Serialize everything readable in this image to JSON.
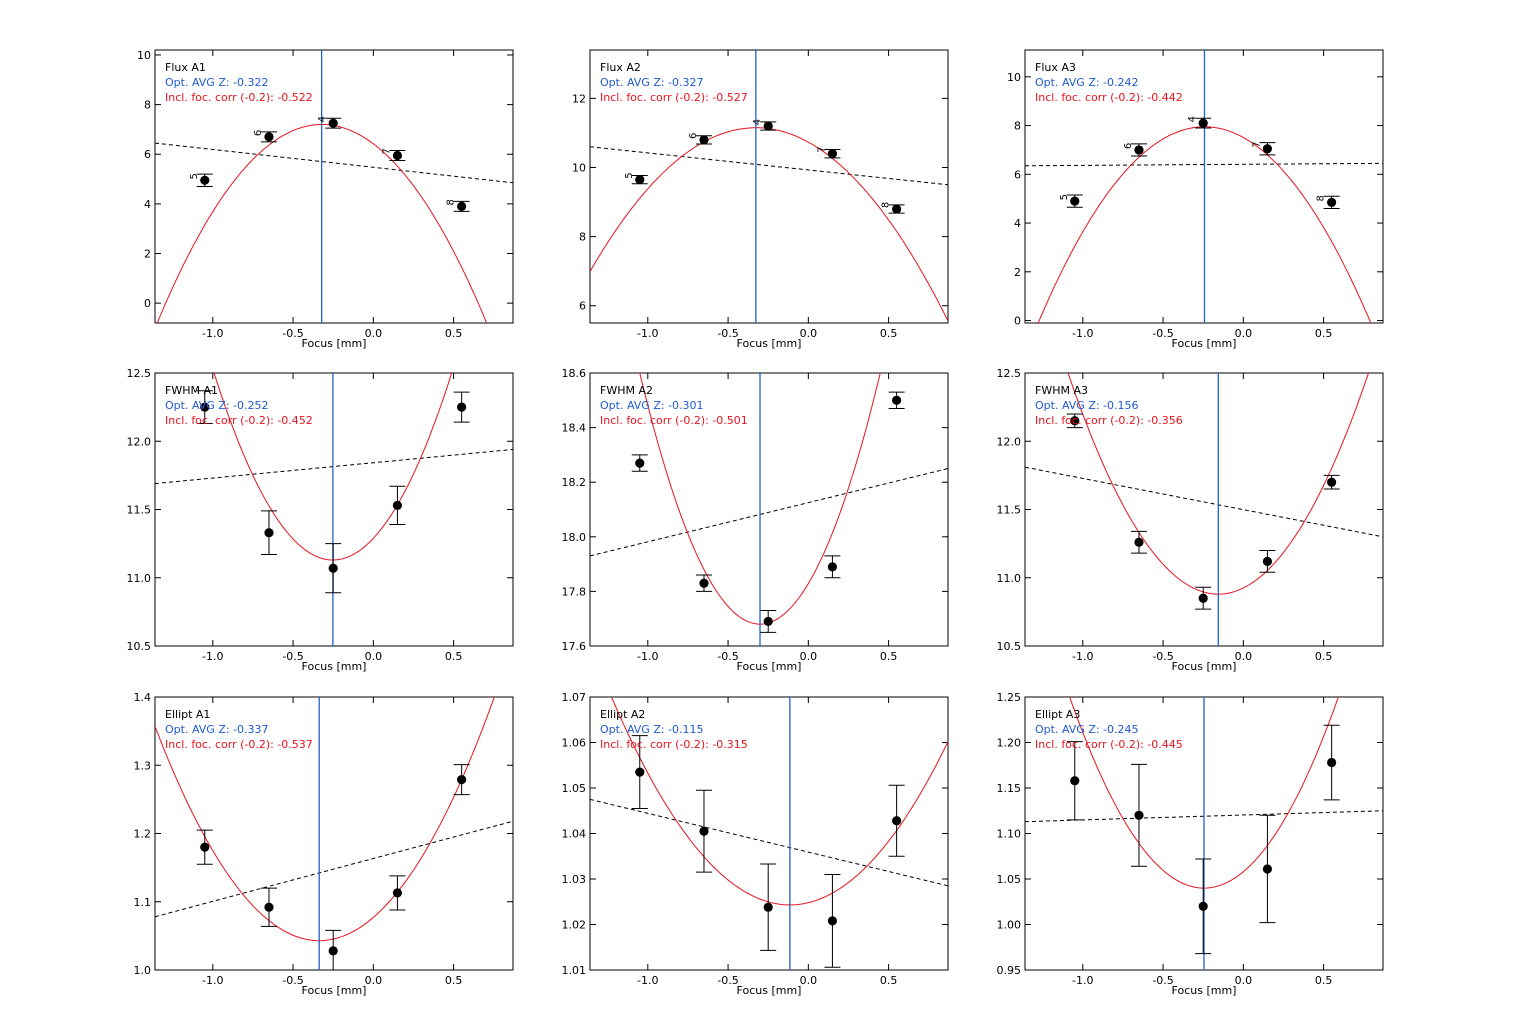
{
  "chart_data": [
    {
      "type": "scatter",
      "title": "Flux A1",
      "opt_text": "Opt. AVG Z: -0.322",
      "corr_text": "Incl. foc. corr (-0.2): -0.522",
      "xlabel": "Focus [mm]",
      "xlim": [
        -1.36,
        0.87
      ],
      "ylim": [
        -0.8,
        10.2
      ],
      "xticks": [
        -1.0,
        -0.5,
        0.0,
        0.5
      ],
      "xtick_labels": [
        "-1.0",
        "-0.5",
        "0.0",
        "0.5"
      ],
      "yticks": [
        0,
        2,
        4,
        6,
        8,
        10
      ],
      "ytick_labels": [
        "0",
        "2",
        "4",
        "6",
        "8",
        "10"
      ],
      "points": [
        {
          "x": -1.05,
          "y": 4.95,
          "err": 0.25,
          "label": "5"
        },
        {
          "x": -0.65,
          "y": 6.7,
          "err": 0.2,
          "label": "6"
        },
        {
          "x": -0.25,
          "y": 7.25,
          "err": 0.2,
          "label": "4"
        },
        {
          "x": 0.15,
          "y": 5.95,
          "err": 0.2,
          "label": "7"
        },
        {
          "x": 0.55,
          "y": 3.9,
          "err": 0.2,
          "label": "8"
        }
      ],
      "fit": {
        "a": -7.6,
        "x0": -0.32,
        "y0": 7.2
      },
      "trend": {
        "y_start": 6.45,
        "y_end": 4.85
      },
      "vline": -0.322
    },
    {
      "type": "scatter",
      "title": "Flux A2",
      "opt_text": "Opt. AVG Z: -0.327",
      "corr_text": "Incl. foc. corr (-0.2): -0.527",
      "xlabel": "Focus [mm]",
      "xlim": [
        -1.36,
        0.87
      ],
      "ylim": [
        5.5,
        13.4
      ],
      "xticks": [
        -1.0,
        -0.5,
        0.0,
        0.5
      ],
      "xtick_labels": [
        "-1.0",
        "-0.5",
        "0.0",
        "0.5"
      ],
      "yticks": [
        6,
        8,
        10,
        12
      ],
      "ytick_labels": [
        "6",
        "8",
        "10",
        "12"
      ],
      "points": [
        {
          "x": -1.05,
          "y": 9.65,
          "err": 0.12,
          "label": "5"
        },
        {
          "x": -0.65,
          "y": 10.8,
          "err": 0.12,
          "label": "6"
        },
        {
          "x": -0.25,
          "y": 11.2,
          "err": 0.12,
          "label": "4"
        },
        {
          "x": 0.15,
          "y": 10.4,
          "err": 0.12,
          "label": "7"
        },
        {
          "x": 0.55,
          "y": 8.8,
          "err": 0.12,
          "label": "8"
        }
      ],
      "fit": {
        "a": -3.9,
        "x0": -0.327,
        "y0": 11.15
      },
      "trend": {
        "y_start": 10.6,
        "y_end": 9.5
      },
      "vline": -0.327
    },
    {
      "type": "scatter",
      "title": "Flux A3",
      "opt_text": "Opt. AVG Z: -0.242",
      "corr_text": "Incl. foc. corr (-0.2): -0.442",
      "xlabel": "Focus [mm]",
      "xlim": [
        -1.36,
        0.87
      ],
      "ylim": [
        -0.1,
        11.1
      ],
      "xticks": [
        -1.0,
        -0.5,
        0.0,
        0.5
      ],
      "xtick_labels": [
        "-1.0",
        "-0.5",
        "0.0",
        "0.5"
      ],
      "yticks": [
        0,
        2,
        4,
        6,
        8,
        10
      ],
      "ytick_labels": [
        "0",
        "2",
        "4",
        "6",
        "8",
        "10"
      ],
      "points": [
        {
          "x": -1.05,
          "y": 4.9,
          "err": 0.25,
          "label": "5"
        },
        {
          "x": -0.65,
          "y": 7.0,
          "err": 0.25,
          "label": "6"
        },
        {
          "x": -0.25,
          "y": 8.1,
          "err": 0.2,
          "label": "4"
        },
        {
          "x": 0.15,
          "y": 7.05,
          "err": 0.25,
          "label": "7"
        },
        {
          "x": 0.55,
          "y": 4.85,
          "err": 0.25,
          "label": "8"
        }
      ],
      "fit": {
        "a": -7.5,
        "x0": -0.242,
        "y0": 7.95
      },
      "trend": {
        "y_start": 6.35,
        "y_end": 6.45
      },
      "vline": -0.242
    },
    {
      "type": "scatter",
      "title": "FWHM A1",
      "opt_text": "Opt. AVG Z: -0.252",
      "corr_text": "Incl. foc. corr (-0.2): -0.452",
      "xlabel": "Focus [mm]",
      "xlim": [
        -1.36,
        0.87
      ],
      "ylim": [
        10.5,
        12.5
      ],
      "xticks": [
        -1.0,
        -0.5,
        0.0,
        0.5
      ],
      "xtick_labels": [
        "-1.0",
        "-0.5",
        "0.0",
        "0.5"
      ],
      "yticks": [
        10.5,
        11.0,
        11.5,
        12.0,
        12.5
      ],
      "ytick_labels": [
        "10.5",
        "11.0",
        "11.5",
        "12.0",
        "12.5"
      ],
      "points": [
        {
          "x": -1.05,
          "y": 12.25,
          "err": 0.12,
          "label": ""
        },
        {
          "x": -0.65,
          "y": 11.33,
          "err": 0.16,
          "label": ""
        },
        {
          "x": -0.25,
          "y": 11.07,
          "err": 0.18,
          "label": ""
        },
        {
          "x": 0.15,
          "y": 11.53,
          "err": 0.14,
          "label": ""
        },
        {
          "x": 0.55,
          "y": 12.25,
          "err": 0.11,
          "label": ""
        }
      ],
      "fit": {
        "a": 2.5,
        "x0": -0.252,
        "y0": 11.13
      },
      "trend": {
        "y_start": 11.69,
        "y_end": 11.94
      },
      "vline": -0.252
    },
    {
      "type": "scatter",
      "title": "FWHM A2",
      "opt_text": "Opt. AVG Z: -0.301",
      "corr_text": "Incl. foc. corr (-0.2): -0.501",
      "xlabel": "Focus [mm]",
      "xlim": [
        -1.36,
        0.87
      ],
      "ylim": [
        17.6,
        18.6
      ],
      "xticks": [
        -1.0,
        -0.5,
        0.0,
        0.5
      ],
      "xtick_labels": [
        "-1.0",
        "-0.5",
        "0.0",
        "0.5"
      ],
      "yticks": [
        17.6,
        17.8,
        18.0,
        18.2,
        18.4,
        18.6
      ],
      "ytick_labels": [
        "17.6",
        "17.8",
        "18.0",
        "18.2",
        "18.4",
        "18.6"
      ],
      "points": [
        {
          "x": -1.05,
          "y": 18.27,
          "err": 0.03,
          "label": ""
        },
        {
          "x": -0.65,
          "y": 17.83,
          "err": 0.03,
          "label": ""
        },
        {
          "x": -0.25,
          "y": 17.69,
          "err": 0.04,
          "label": ""
        },
        {
          "x": 0.15,
          "y": 17.89,
          "err": 0.04,
          "label": ""
        },
        {
          "x": 0.55,
          "y": 18.5,
          "err": 0.03,
          "label": ""
        }
      ],
      "fit": {
        "a": 1.64,
        "x0": -0.301,
        "y0": 17.68
      },
      "trend": {
        "y_start": 17.93,
        "y_end": 18.25
      },
      "vline": -0.301
    },
    {
      "type": "scatter",
      "title": "FWHM A3",
      "opt_text": "Opt. AVG Z: -0.156",
      "corr_text": "Incl. foc. corr (-0.2): -0.356",
      "xlabel": "Focus [mm]",
      "xlim": [
        -1.36,
        0.87
      ],
      "ylim": [
        10.5,
        12.5
      ],
      "xticks": [
        -1.0,
        -0.5,
        0.0,
        0.5
      ],
      "xtick_labels": [
        "-1.0",
        "-0.5",
        "0.0",
        "0.5"
      ],
      "yticks": [
        10.5,
        11.0,
        11.5,
        12.0,
        12.5
      ],
      "ytick_labels": [
        "10.5",
        "11.0",
        "11.5",
        "12.0",
        "12.5"
      ],
      "points": [
        {
          "x": -1.05,
          "y": 12.15,
          "err": 0.05,
          "label": ""
        },
        {
          "x": -0.65,
          "y": 11.26,
          "err": 0.08,
          "label": ""
        },
        {
          "x": -0.25,
          "y": 10.85,
          "err": 0.08,
          "label": ""
        },
        {
          "x": 0.15,
          "y": 11.12,
          "err": 0.08,
          "label": ""
        },
        {
          "x": 0.55,
          "y": 11.7,
          "err": 0.05,
          "label": ""
        }
      ],
      "fit": {
        "a": 1.85,
        "x0": -0.156,
        "y0": 10.88
      },
      "trend": {
        "y_start": 11.81,
        "y_end": 11.3
      },
      "vline": -0.156
    },
    {
      "type": "scatter",
      "title": "Ellipt A1",
      "opt_text": "Opt. AVG Z: -0.337",
      "corr_text": "Incl. foc. corr (-0.2): -0.537",
      "xlabel": "Focus [mm]",
      "xlim": [
        -1.36,
        0.87
      ],
      "ylim": [
        1.0,
        1.4
      ],
      "xticks": [
        -1.0,
        -0.5,
        0.0,
        0.5
      ],
      "xtick_labels": [
        "-1.0",
        "-0.5",
        "0.0",
        "0.5"
      ],
      "yticks": [
        1.0,
        1.1,
        1.2,
        1.3,
        1.4
      ],
      "ytick_labels": [
        "1.0",
        "1.1",
        "1.2",
        "1.3",
        "1.4"
      ],
      "points": [
        {
          "x": -1.05,
          "y": 1.18,
          "err": 0.025,
          "label": ""
        },
        {
          "x": -0.65,
          "y": 1.092,
          "err": 0.028,
          "label": ""
        },
        {
          "x": -0.25,
          "y": 1.028,
          "err": 0.03,
          "label": ""
        },
        {
          "x": 0.15,
          "y": 1.113,
          "err": 0.025,
          "label": ""
        },
        {
          "x": 0.55,
          "y": 1.279,
          "err": 0.022,
          "label": ""
        }
      ],
      "fit": {
        "a": 0.3,
        "x0": -0.337,
        "y0": 1.043
      },
      "trend": {
        "y_start": 1.078,
        "y_end": 1.218
      },
      "vline": -0.337
    },
    {
      "type": "scatter",
      "title": "Ellipt A2",
      "opt_text": "Opt. AVG Z: -0.115",
      "corr_text": "Incl. foc. corr (-0.2): -0.315",
      "xlabel": "Focus [mm]",
      "xlim": [
        -1.36,
        0.87
      ],
      "ylim": [
        1.01,
        1.07
      ],
      "xticks": [
        -1.0,
        -0.5,
        0.0,
        0.5
      ],
      "xtick_labels": [
        "-1.0",
        "-0.5",
        "0.0",
        "0.5"
      ],
      "yticks": [
        1.01,
        1.02,
        1.03,
        1.04,
        1.05,
        1.06,
        1.07
      ],
      "ytick_labels": [
        "1.01",
        "1.02",
        "1.03",
        "1.04",
        "1.05",
        "1.06",
        "1.07"
      ],
      "points": [
        {
          "x": -1.05,
          "y": 1.0535,
          "err": 0.008,
          "label": ""
        },
        {
          "x": -0.65,
          "y": 1.0405,
          "err": 0.009,
          "label": ""
        },
        {
          "x": -0.25,
          "y": 1.0238,
          "err": 0.0095,
          "label": ""
        },
        {
          "x": 0.15,
          "y": 1.0208,
          "err": 0.0102,
          "label": ""
        },
        {
          "x": 0.55,
          "y": 1.0428,
          "err": 0.0078,
          "label": ""
        }
      ],
      "fit": {
        "a": 0.037,
        "x0": -0.115,
        "y0": 1.0243
      },
      "trend": {
        "y_start": 1.0475,
        "y_end": 1.0285
      },
      "vline": -0.115
    },
    {
      "type": "scatter",
      "title": "Ellipt A3",
      "opt_text": "Opt. AVG Z: -0.245",
      "corr_text": "Incl. foc. corr (-0.2): -0.445",
      "xlabel": "Focus [mm]",
      "xlim": [
        -1.36,
        0.87
      ],
      "ylim": [
        0.95,
        1.25
      ],
      "xticks": [
        -1.0,
        -0.5,
        0.0,
        0.5
      ],
      "xtick_labels": [
        "-1.0",
        "-0.5",
        "0.0",
        "0.5"
      ],
      "yticks": [
        0.95,
        1.0,
        1.05,
        1.1,
        1.15,
        1.2,
        1.25
      ],
      "ytick_labels": [
        "0.95",
        "1.00",
        "1.05",
        "1.10",
        "1.15",
        "1.20",
        "1.25"
      ],
      "points": [
        {
          "x": -1.05,
          "y": 1.158,
          "err": 0.043,
          "label": ""
        },
        {
          "x": -0.65,
          "y": 1.12,
          "err": 0.056,
          "label": ""
        },
        {
          "x": -0.25,
          "y": 1.02,
          "err": 0.052,
          "label": ""
        },
        {
          "x": 0.15,
          "y": 1.061,
          "err": 0.059,
          "label": ""
        },
        {
          "x": 0.55,
          "y": 1.178,
          "err": 0.041,
          "label": ""
        }
      ],
      "fit": {
        "a": 0.3,
        "x0": -0.245,
        "y0": 1.04
      },
      "trend": {
        "y_start": 1.113,
        "y_end": 1.125
      },
      "vline": -0.245
    }
  ]
}
